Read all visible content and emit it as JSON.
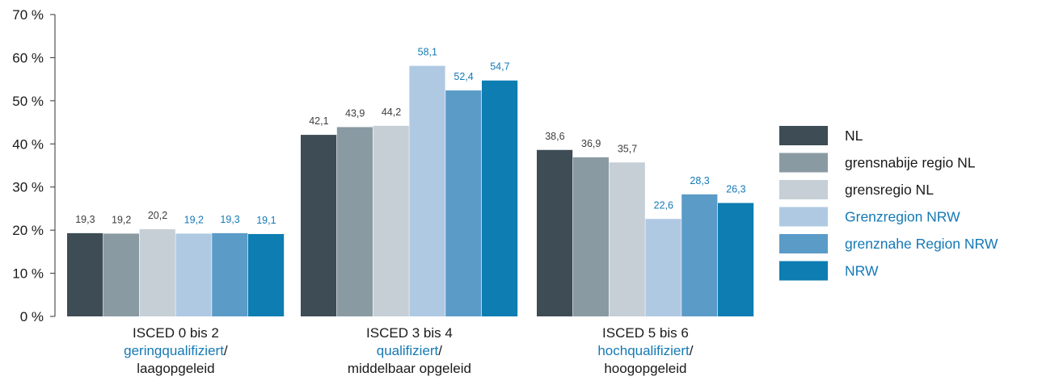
{
  "chart_data": {
    "type": "bar",
    "title": "",
    "xlabel": "",
    "ylabel": "",
    "ylim": [
      0,
      70
    ],
    "y_ticks": [
      0,
      10,
      20,
      30,
      40,
      50,
      60,
      70
    ],
    "y_tick_suffix": " %",
    "grid": false,
    "legend_position": "right",
    "categories": [
      {
        "line1": "ISCED 0 bis 2",
        "line2": "geringqualifiziert",
        "line2_suffix": "/",
        "line3": "laagopgeleid"
      },
      {
        "line1": "ISCED 3 bis 4",
        "line2": "qualifiziert",
        "line2_suffix": "/",
        "line3": "middelbaar opgeleid"
      },
      {
        "line1": "ISCED 5 bis 6",
        "line2": "hochqualifiziert",
        "line2_suffix": "/",
        "line3": "hoogopgeleid"
      }
    ],
    "series": [
      {
        "name": "NL",
        "color": "#3d4c55",
        "label_color": "#3d3d3d",
        "values": [
          19.3,
          42.1,
          38.6
        ],
        "labels": [
          "19,3",
          "42,1",
          "38,6"
        ]
      },
      {
        "name": "grensnabije regio NL",
        "color": "#8a9aa3",
        "label_color": "#3d3d3d",
        "values": [
          19.2,
          43.9,
          36.9
        ],
        "labels": [
          "19,2",
          "43,9",
          "36,9"
        ]
      },
      {
        "name": "grensregio NL",
        "color": "#c5cfd5",
        "label_color": "#3d3d3d",
        "values": [
          20.2,
          44.2,
          35.7
        ],
        "labels": [
          "20,2",
          "44,2",
          "35,7"
        ]
      },
      {
        "name": "Grenzregion NRW",
        "color": "#afc9e3",
        "label_color": "#1479b5",
        "values": [
          19.2,
          58.1,
          22.6
        ],
        "labels": [
          "19,2",
          "58,1",
          "22,6"
        ]
      },
      {
        "name": "grenznahe Region NRW",
        "color": "#5b9bc8",
        "label_color": "#1479b5",
        "values": [
          19.3,
          52.4,
          28.3
        ],
        "labels": [
          "19,3",
          "52,4",
          "28,3"
        ]
      },
      {
        "name": "NRW",
        "color": "#0d7db2",
        "label_color": "#1479b5",
        "values": [
          19.1,
          54.7,
          26.3
        ],
        "labels": [
          "19,1",
          "54,7",
          "26,3"
        ]
      }
    ],
    "colors": {
      "axis": "#333333",
      "dark_text": "#1a1a1a",
      "blue_text": "#1479b5"
    }
  }
}
